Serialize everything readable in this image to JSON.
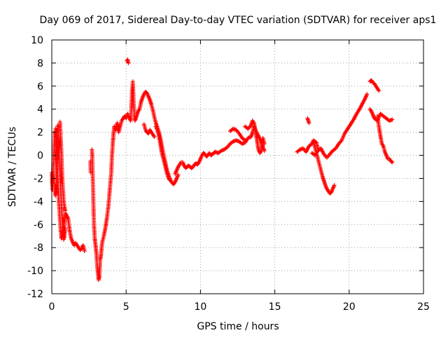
{
  "chart_data": {
    "type": "scatter",
    "title": "Day 069 of 2017, Sidereal Day-to-day VTEC variation (SDTVAR) for receiver aps1",
    "xlabel": "GPS time / hours",
    "ylabel": "SDTVAR / TECUs",
    "xlim": [
      0,
      25
    ],
    "ylim": [
      -12,
      10
    ],
    "xticks": [
      0,
      5,
      10,
      15,
      20,
      25
    ],
    "yticks": [
      -12,
      -10,
      -8,
      -6,
      -4,
      -2,
      0,
      2,
      4,
      6,
      8,
      10
    ],
    "grid": true,
    "marker": "+",
    "marker_color": "#ff0000",
    "segments": [
      [
        [
          0.0,
          -1.5
        ],
        [
          0.05,
          -3.0
        ],
        [
          0.1,
          -1.0
        ],
        [
          0.15,
          0.5
        ],
        [
          0.2,
          1.8
        ],
        [
          0.25,
          2.3
        ],
        [
          0.3,
          1.0
        ],
        [
          0.35,
          -0.5
        ],
        [
          0.4,
          -2.0
        ],
        [
          0.45,
          -3.5
        ],
        [
          0.5,
          -4.5
        ],
        [
          0.55,
          -5.5
        ],
        [
          0.6,
          -6.5
        ],
        [
          0.65,
          -7.2
        ],
        [
          0.7,
          -7.0
        ],
        [
          0.75,
          -6.5
        ],
        [
          0.8,
          -6.8
        ],
        [
          0.85,
          -5.8
        ],
        [
          0.9,
          -5.0
        ],
        [
          1.0,
          -5.2
        ],
        [
          1.1,
          -5.5
        ],
        [
          1.2,
          -6.5
        ],
        [
          1.3,
          -7.2
        ],
        [
          1.4,
          -7.5
        ],
        [
          1.5,
          -7.8
        ],
        [
          1.6,
          -7.6
        ],
        [
          1.7,
          -7.8
        ],
        [
          1.8,
          -8.0
        ],
        [
          1.9,
          -8.2
        ],
        [
          2.0,
          -8.1
        ],
        [
          2.1,
          -7.8
        ],
        [
          2.2,
          -8.3
        ]
      ],
      [
        [
          0.2,
          -2.5
        ],
        [
          0.25,
          -3.5
        ],
        [
          0.3,
          -3.2
        ],
        [
          0.35,
          1.5
        ],
        [
          0.4,
          2.6
        ],
        [
          0.45,
          2.0
        ],
        [
          0.5,
          0.0
        ],
        [
          0.55,
          -1.5
        ],
        [
          0.6,
          -3.0
        ],
        [
          0.65,
          -4.5
        ],
        [
          0.7,
          -5.5
        ],
        [
          0.75,
          -6.5
        ],
        [
          0.8,
          -7.3
        ],
        [
          0.85,
          -7.0
        ],
        [
          0.9,
          -6.3
        ]
      ],
      [
        [
          0.55,
          2.9
        ],
        [
          0.6,
          1.5
        ],
        [
          0.65,
          0.0
        ],
        [
          0.7,
          -1.8
        ],
        [
          0.75,
          -3.0
        ],
        [
          0.8,
          -4.0
        ],
        [
          0.85,
          -4.5
        ],
        [
          0.9,
          -4.8
        ]
      ],
      [
        [
          2.7,
          0.5
        ],
        [
          2.72,
          -0.2
        ],
        [
          2.74,
          -1.0
        ],
        [
          2.76,
          -2.2
        ],
        [
          2.78,
          -3.0
        ],
        [
          2.8,
          -4.2
        ],
        [
          2.82,
          -5.2
        ],
        [
          2.84,
          -6.0
        ],
        [
          2.86,
          -6.5
        ],
        [
          2.88,
          -7.0
        ],
        [
          2.9,
          -7.4
        ]
      ],
      [
        [
          2.6,
          -0.5
        ],
        [
          2.62,
          -1.5
        ]
      ],
      [
        [
          2.9,
          -7.3
        ],
        [
          3.0,
          -8.5
        ],
        [
          3.05,
          -9.5
        ],
        [
          3.1,
          -10.2
        ],
        [
          3.15,
          -10.8
        ],
        [
          3.2,
          -10.5
        ],
        [
          3.25,
          -9.0
        ],
        [
          3.3,
          -8.8
        ],
        [
          3.35,
          -8.0
        ],
        [
          3.4,
          -7.5
        ],
        [
          3.5,
          -7.0
        ],
        [
          3.6,
          -6.3
        ],
        [
          3.7,
          -5.5
        ],
        [
          3.8,
          -4.5
        ],
        [
          3.9,
          -3.0
        ],
        [
          4.0,
          -1.5
        ],
        [
          4.05,
          0.0
        ],
        [
          4.1,
          1.0
        ],
        [
          4.15,
          1.8
        ],
        [
          4.2,
          2.5
        ],
        [
          4.3,
          2.2
        ],
        [
          4.4,
          2.8
        ],
        [
          4.5,
          2.0
        ],
        [
          4.6,
          2.5
        ],
        [
          4.7,
          3.0
        ],
        [
          4.8,
          3.2
        ],
        [
          4.9,
          3.4
        ],
        [
          5.0,
          3.2
        ],
        [
          5.1,
          3.6
        ],
        [
          5.2,
          3.3
        ],
        [
          5.3,
          3.0
        ]
      ],
      [
        [
          5.05,
          8.2
        ],
        [
          5.1,
          8.3
        ],
        [
          5.15,
          8.0
        ]
      ],
      [
        [
          5.3,
          3.0
        ],
        [
          5.35,
          4.0
        ],
        [
          5.4,
          5.5
        ],
        [
          5.45,
          6.4
        ],
        [
          5.5,
          4.8
        ],
        [
          5.55,
          3.5
        ],
        [
          5.6,
          3.0
        ],
        [
          5.7,
          3.4
        ],
        [
          5.8,
          3.8
        ],
        [
          5.9,
          4.0
        ],
        [
          6.0,
          4.6
        ],
        [
          6.1,
          5.0
        ],
        [
          6.2,
          5.3
        ],
        [
          6.3,
          5.5
        ],
        [
          6.4,
          5.4
        ],
        [
          6.5,
          5.1
        ],
        [
          6.6,
          4.8
        ],
        [
          6.7,
          4.4
        ],
        [
          6.8,
          3.9
        ],
        [
          6.9,
          3.3
        ],
        [
          7.0,
          2.8
        ],
        [
          7.1,
          2.4
        ],
        [
          7.2,
          2.0
        ],
        [
          7.3,
          1.5
        ],
        [
          7.4,
          0.8
        ],
        [
          7.5,
          0.2
        ],
        [
          7.6,
          -0.4
        ],
        [
          7.7,
          -1.0
        ],
        [
          7.8,
          -1.5
        ],
        [
          7.9,
          -1.9
        ],
        [
          8.0,
          -2.2
        ],
        [
          8.1,
          -2.4
        ],
        [
          8.2,
          -2.5
        ],
        [
          8.3,
          -2.3
        ],
        [
          8.4,
          -2.0
        ],
        [
          8.5,
          -1.7
        ]
      ],
      [
        [
          6.2,
          2.7
        ],
        [
          6.3,
          2.2
        ],
        [
          6.4,
          2.0
        ],
        [
          6.5,
          1.9
        ],
        [
          6.6,
          2.2
        ],
        [
          6.7,
          2.0
        ],
        [
          6.8,
          1.8
        ],
        [
          6.9,
          1.6
        ]
      ],
      [
        [
          7.0,
          2.5
        ],
        [
          7.1,
          2.2
        ],
        [
          7.2,
          1.8
        ],
        [
          7.3,
          1.0
        ],
        [
          7.4,
          0.2
        ],
        [
          7.5,
          -0.3
        ],
        [
          7.6,
          -0.8
        ],
        [
          7.7,
          -1.3
        ],
        [
          7.8,
          -1.8
        ],
        [
          7.9,
          -2.1
        ],
        [
          8.0,
          -2.2
        ]
      ],
      [
        [
          8.3,
          -1.6
        ],
        [
          8.4,
          -1.3
        ],
        [
          8.5,
          -1.0
        ],
        [
          8.6,
          -0.8
        ],
        [
          8.7,
          -0.6
        ],
        [
          8.8,
          -0.6
        ],
        [
          8.9,
          -0.9
        ],
        [
          9.0,
          -1.1
        ],
        [
          9.1,
          -1.0
        ],
        [
          9.2,
          -0.9
        ],
        [
          9.3,
          -1.0
        ],
        [
          9.4,
          -1.1
        ],
        [
          9.5,
          -1.0
        ],
        [
          9.6,
          -0.8
        ],
        [
          9.7,
          -0.7
        ],
        [
          9.8,
          -0.8
        ],
        [
          9.9,
          -0.6
        ],
        [
          10.0,
          -0.3
        ],
        [
          10.1,
          0.0
        ],
        [
          10.2,
          0.2
        ],
        [
          10.3,
          0.1
        ],
        [
          10.4,
          -0.1
        ],
        [
          10.5,
          0.0
        ],
        [
          10.6,
          0.2
        ],
        [
          10.7,
          0.0
        ],
        [
          10.8,
          0.1
        ],
        [
          10.9,
          0.2
        ],
        [
          11.0,
          0.3
        ],
        [
          11.2,
          0.2
        ],
        [
          11.4,
          0.4
        ],
        [
          11.6,
          0.5
        ],
        [
          11.8,
          0.7
        ],
        [
          12.0,
          1.0
        ],
        [
          12.2,
          1.2
        ],
        [
          12.4,
          1.3
        ],
        [
          12.6,
          1.2
        ],
        [
          12.8,
          1.0
        ],
        [
          13.0,
          1.1
        ],
        [
          13.2,
          1.5
        ],
        [
          13.4,
          1.6
        ],
        [
          13.5,
          2.0
        ],
        [
          13.6,
          2.5
        ],
        [
          13.7,
          2.2
        ],
        [
          13.8,
          1.9
        ],
        [
          13.9,
          1.7
        ],
        [
          14.0,
          1.4
        ],
        [
          14.1,
          1.1
        ],
        [
          14.2,
          0.7
        ],
        [
          14.3,
          0.4
        ]
      ],
      [
        [
          13.0,
          2.5
        ],
        [
          13.2,
          2.3
        ],
        [
          13.4,
          2.6
        ],
        [
          13.5,
          3.0
        ],
        [
          13.6,
          2.8
        ],
        [
          13.7,
          2.1
        ],
        [
          13.8,
          1.3
        ],
        [
          13.9,
          0.5
        ],
        [
          14.0,
          0.2
        ],
        [
          14.1,
          0.4
        ],
        [
          14.2,
          1.5
        ],
        [
          14.3,
          1.0
        ]
      ],
      [
        [
          12.0,
          2.1
        ],
        [
          12.2,
          2.3
        ],
        [
          12.4,
          2.2
        ],
        [
          12.6,
          1.9
        ],
        [
          12.8,
          1.5
        ],
        [
          13.0,
          1.3
        ]
      ],
      [
        [
          16.5,
          0.3
        ],
        [
          16.7,
          0.5
        ],
        [
          16.9,
          0.6
        ],
        [
          17.1,
          0.3
        ],
        [
          17.3,
          0.8
        ],
        [
          17.5,
          1.0
        ],
        [
          17.6,
          1.3
        ],
        [
          17.8,
          1.1
        ],
        [
          17.9,
          0.6
        ]
      ],
      [
        [
          17.2,
          3.2
        ],
        [
          17.3,
          2.8
        ]
      ],
      [
        [
          17.6,
          1.2
        ],
        [
          17.7,
          0.7
        ],
        [
          17.8,
          0.2
        ],
        [
          17.9,
          -0.3
        ],
        [
          18.0,
          -0.8
        ],
        [
          18.1,
          -1.3
        ],
        [
          18.2,
          -1.8
        ],
        [
          18.3,
          -2.2
        ],
        [
          18.4,
          -2.6
        ],
        [
          18.5,
          -2.9
        ],
        [
          18.6,
          -3.1
        ],
        [
          18.7,
          -3.3
        ],
        [
          18.8,
          -3.2
        ],
        [
          18.9,
          -2.9
        ],
        [
          19.0,
          -2.6
        ]
      ],
      [
        [
          17.5,
          0.2
        ],
        [
          17.7,
          0.0
        ],
        [
          17.9,
          0.4
        ],
        [
          18.1,
          0.6
        ],
        [
          18.3,
          0.1
        ],
        [
          18.5,
          -0.2
        ],
        [
          18.7,
          0.1
        ],
        [
          18.9,
          0.4
        ],
        [
          19.1,
          0.6
        ],
        [
          19.3,
          1.0
        ],
        [
          19.5,
          1.3
        ],
        [
          19.7,
          1.9
        ],
        [
          19.9,
          2.3
        ],
        [
          20.1,
          2.7
        ],
        [
          20.3,
          3.1
        ],
        [
          20.5,
          3.6
        ],
        [
          20.7,
          4.0
        ],
        [
          20.9,
          4.5
        ],
        [
          21.1,
          5.0
        ],
        [
          21.2,
          5.3
        ]
      ],
      [
        [
          21.4,
          6.4
        ],
        [
          21.5,
          6.5
        ],
        [
          21.6,
          6.3
        ],
        [
          21.7,
          6.2
        ],
        [
          21.8,
          6.0
        ],
        [
          21.9,
          5.8
        ],
        [
          22.0,
          5.6
        ]
      ],
      [
        [
          21.4,
          4.0
        ],
        [
          21.5,
          3.8
        ],
        [
          21.6,
          3.5
        ],
        [
          21.7,
          3.2
        ],
        [
          21.9,
          3.0
        ],
        [
          22.1,
          3.6
        ],
        [
          22.3,
          3.4
        ],
        [
          22.5,
          3.2
        ],
        [
          22.7,
          3.0
        ],
        [
          22.9,
          3.1
        ]
      ],
      [
        [
          21.9,
          3.4
        ],
        [
          22.0,
          2.5
        ],
        [
          22.1,
          1.7
        ],
        [
          22.2,
          1.0
        ],
        [
          22.3,
          0.8
        ],
        [
          22.4,
          0.3
        ],
        [
          22.5,
          0.0
        ],
        [
          22.6,
          -0.3
        ],
        [
          22.7,
          -0.3
        ],
        [
          22.8,
          -0.5
        ],
        [
          22.9,
          -0.6
        ]
      ]
    ]
  }
}
